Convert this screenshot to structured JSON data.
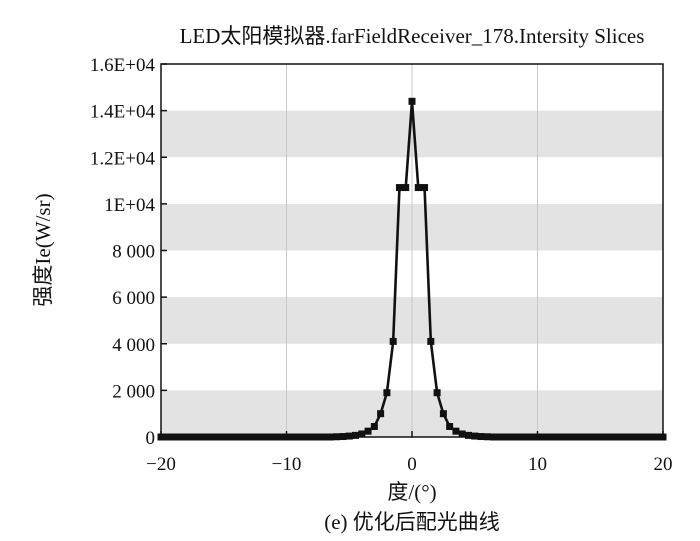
{
  "chart_data": {
    "type": "line",
    "title": "LED太阳模拟器.farFieldReceiver_178.Intersity Slices",
    "xlabel": "度/(°)",
    "ylabel": "强度Ie(W/sr)",
    "caption": "(e) 优化后配光曲线",
    "xlim": [
      -20,
      20
    ],
    "ylim": [
      0,
      16000
    ],
    "x_ticks": [
      -20,
      -10,
      0,
      10,
      20
    ],
    "x_tick_labels": [
      "−20",
      "−10",
      "0",
      "10",
      "20"
    ],
    "y_ticks": [
      0,
      2000,
      4000,
      6000,
      8000,
      10000,
      12000,
      14000,
      16000
    ],
    "y_tick_labels": [
      "0",
      "2 000",
      "4 000",
      "6 000",
      "8 000",
      "1E+04",
      "1.2E+04",
      "1.4E+04",
      "1.6E+04"
    ],
    "grid": "vertical lines at x ticks; alternating gray bands every 2000",
    "legend": "none",
    "colors": {
      "band": "#e3e3e3",
      "line": "#111111",
      "marker": "#111111",
      "grid": "#c8c8c8"
    },
    "series": [
      {
        "x": [
          -20,
          -19.5,
          -19,
          -18.5,
          -18,
          -17.5,
          -17,
          -16.5,
          -16,
          -15.5,
          -15,
          -14.5,
          -14,
          -13.5,
          -13,
          -12.5,
          -12,
          -11.5,
          -11,
          -10.5,
          -10,
          -9.5,
          -9,
          -8.5,
          -8,
          -7.5,
          -7,
          -6.5,
          -6,
          -5.5,
          -5,
          -4.5,
          -4,
          -3.5,
          -3,
          -2.5,
          -2,
          -1.5,
          -1,
          -0.5,
          0,
          0.5,
          1,
          1.5,
          2,
          2.5,
          3,
          3.5,
          4,
          4.5,
          5,
          5.5,
          6,
          6.5,
          7,
          7.5,
          8,
          8.5,
          9,
          9.5,
          10,
          10.5,
          11,
          11.5,
          12,
          12.5,
          13,
          13.5,
          14,
          14.5,
          15,
          15.5,
          16,
          16.5,
          17,
          17.5,
          18,
          18.5,
          19,
          19.5,
          20
        ],
        "values": [
          0,
          0,
          0,
          0,
          0,
          0,
          0,
          0,
          0,
          0,
          0,
          0,
          0,
          0,
          0,
          0,
          0,
          0,
          0,
          0,
          0,
          0,
          0,
          0,
          0,
          0,
          0,
          0,
          10,
          20,
          40,
          70,
          130,
          250,
          450,
          1000,
          1900,
          4100,
          10700,
          10700,
          14400,
          10700,
          10700,
          4100,
          1900,
          1000,
          450,
          250,
          130,
          70,
          40,
          20,
          10,
          0,
          0,
          0,
          0,
          0,
          0,
          0,
          0,
          0,
          0,
          0,
          0,
          0,
          0,
          0,
          0,
          0,
          0,
          0,
          0,
          0,
          0,
          0,
          0,
          0,
          0,
          0,
          0
        ]
      }
    ]
  }
}
